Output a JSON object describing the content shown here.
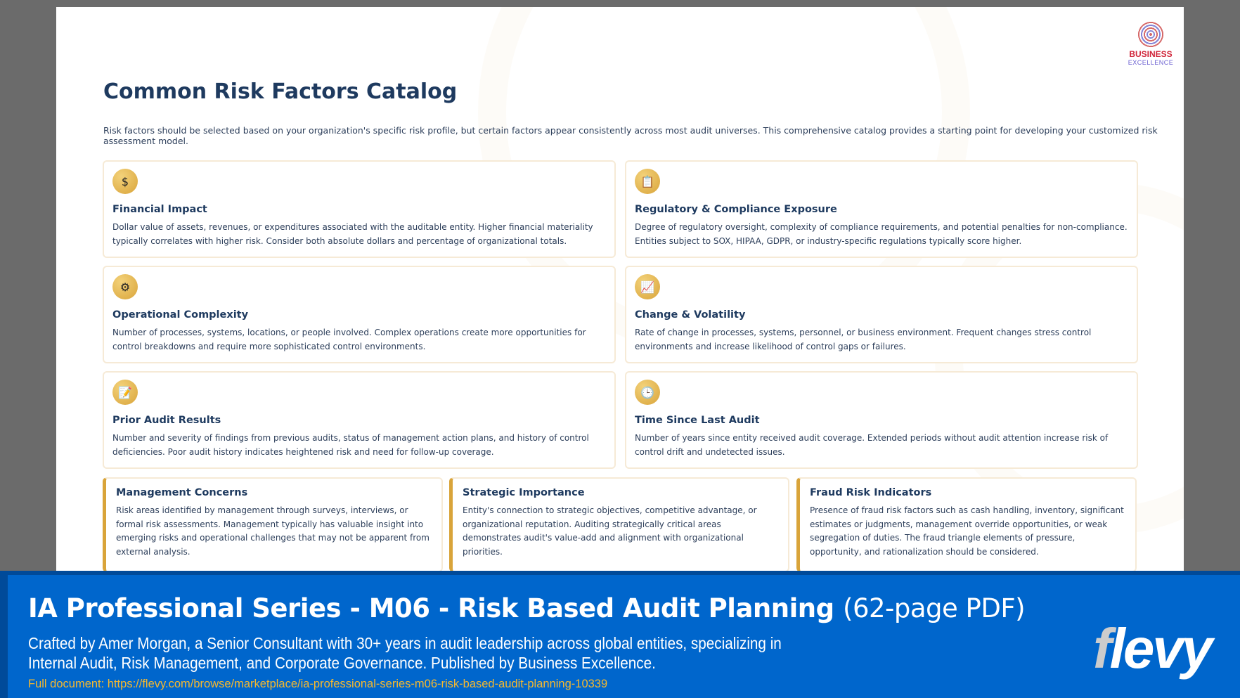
{
  "slide": {
    "logo": {
      "line1": "BUSINESS",
      "line2": "EXCELLENCE"
    },
    "title": "Common Risk Factors Catalog",
    "intro": "Risk factors should be selected based on your organization's specific risk profile, but certain factors appear consistently across most audit universes. This comprehensive catalog provides a starting point for developing your customized risk assessment model.",
    "cards": [
      {
        "icon": "dollar-icon",
        "glyph": "$",
        "title": "Financial Impact",
        "text": "Dollar value of assets, revenues, or expenditures associated with the auditable entity. Higher financial materiality typically correlates with higher risk. Consider both absolute dollars and percentage of organizational totals."
      },
      {
        "icon": "regulation-document-icon",
        "glyph": "📋",
        "title": "Regulatory & Compliance Exposure",
        "text": "Degree of regulatory oversight, complexity of compliance requirements, and potential penalties for non-compliance. Entities subject to SOX, HIPAA, GDPR, or industry-specific regulations typically score higher."
      },
      {
        "icon": "gear-icon",
        "glyph": "⚙",
        "title": "Operational Complexity",
        "text": "Number of processes, systems, locations, or people involved. Complex operations create more opportunities for control breakdowns and require more sophisticated control environments."
      },
      {
        "icon": "line-chart-icon",
        "glyph": "📈",
        "title": "Change & Volatility",
        "text": "Rate of change in processes, systems, personnel, or business environment. Frequent changes stress control environments and increase likelihood of control gaps or failures."
      },
      {
        "icon": "audit-report-icon",
        "glyph": "📝",
        "title": "Prior Audit Results",
        "text": "Number and severity of findings from previous audits, status of management action plans, and history of control deficiencies. Poor audit history indicates heightened risk and need for follow-up coverage."
      },
      {
        "icon": "clock-icon",
        "glyph": "🕒",
        "title": "Time Since Last Audit",
        "text": "Number of years since entity received audit coverage. Extended periods without audit attention increase risk of control drift and undetected issues."
      }
    ],
    "bottom_cards": [
      {
        "title": "Management Concerns",
        "text": "Risk areas identified by management through surveys, interviews, or formal risk assessments. Management typically has valuable insight into emerging risks and operational challenges that may not be apparent from external analysis."
      },
      {
        "title": "Strategic Importance",
        "text": "Entity's connection to strategic objectives, competitive advantage, or organizational reputation. Auditing strategically critical areas demonstrates audit's value-add and alignment with organizational priorities."
      },
      {
        "title": "Fraud Risk Indicators",
        "text": "Presence of fraud risk factors such as cash handling, inventory, significant estimates or judgments, management override opportunities, or weak segregation of duties. The fraud triangle elements of pressure, opportunity, and rationalization should be considered."
      }
    ]
  },
  "banner": {
    "title": "IA Professional Series - M06 - Risk Based Audit Planning",
    "pages": "(62-page PDF)",
    "description": "Crafted by Amer Morgan, a Senior Consultant with 30+ years in audit leadership across global entities, specializing in Internal Audit, Risk Management, and Corporate Governance. Published by Business Excellence.",
    "link": "Full document: https://flevy.com/browse/marketplace/ia-professional-series-m06-risk-based-audit-planning-10339",
    "brand": {
      "f": "f",
      "rest": "levy"
    }
  },
  "colors": {
    "heading": "#1e3a5f",
    "accent": "#d9a43a",
    "banner": "#0066cc",
    "link": "#f5b82e"
  }
}
